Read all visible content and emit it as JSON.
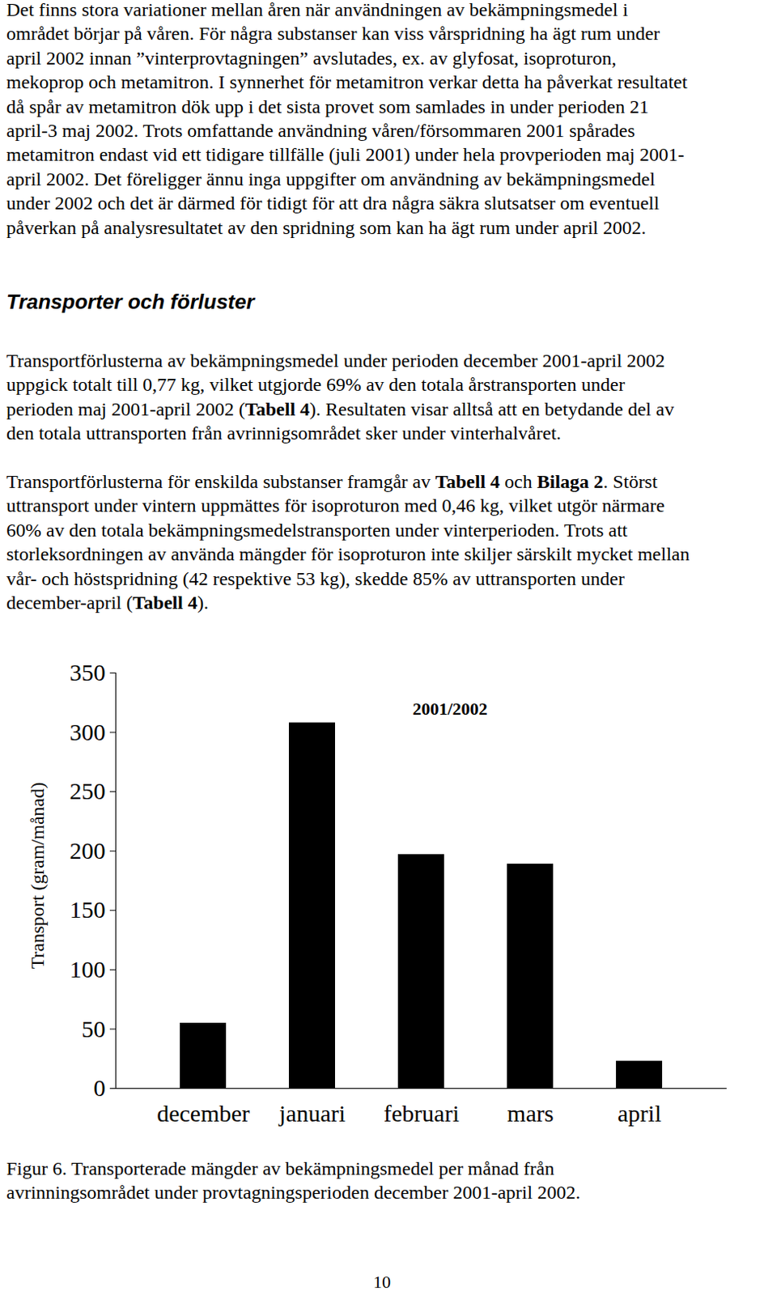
{
  "document": {
    "paragraphs": [
      [
        [
          "Det finns stora variationer mellan åren när användningen av bekämpningsmedel i"
        ],
        [
          "området börjar på våren. För några substanser kan viss vårspridning ha ägt rum under"
        ],
        [
          "april 2002 innan ”vinterprovtagningen” avslutades, ex. av glyfosat, isoproturon,"
        ],
        [
          "mekoprop och  metamitron. I synnerhet för metamitron verkar detta ha påverkat resultatet"
        ],
        [
          "då spår av metamitron dök upp i det sista provet som samlades in under perioden 21"
        ],
        [
          "april-3 maj 2002. Trots omfattande användning våren/försommaren 2001 spårades"
        ],
        [
          "metamitron endast vid ett tidigare tillfälle (juli 2001) under hela provperioden maj 2001-"
        ],
        [
          "april 2002. Det föreligger ännu inga uppgifter om användning av bekämpningsmedel"
        ],
        [
          "under 2002 och det är därmed för tidigt för att dra några säkra slutsatser om eventuell"
        ],
        [
          "påverkan på analysresultatet av den spridning som kan ha ägt rum under april 2002."
        ]
      ]
    ],
    "heading": "Transporter och förluster",
    "section_paragraphs": [
      [
        [
          "Transportförlusterna av bekämpningsmedel under perioden december 2001-april 2002"
        ],
        [
          "uppgick totalt till 0,77 kg, vilket utgjorde 69% av den totala årstransporten under"
        ],
        [
          "perioden maj 2001-april 2002 (",
          {
            "bold": "Tabell 4"
          },
          "). Resultaten visar alltså att en betydande del av"
        ],
        [
          "den totala uttransporten från avrinnigsområdet sker under vinterhalvåret."
        ]
      ],
      [
        [
          "Transportförlusterna för enskilda substanser framgår av ",
          {
            "bold": "Tabell 4"
          },
          " och ",
          {
            "bold": "Bilaga 2"
          },
          ". Störst"
        ],
        [
          "uttransport under vintern uppmättes för isoproturon med 0,46 kg, vilket utgör närmare"
        ],
        [
          "60% av den totala bekämpningsmedelstransporten under vinterperioden. Trots att"
        ],
        [
          "storleksordningen av använda mängder för isoproturon inte skiljer särskilt mycket mellan"
        ],
        [
          "vår- och höstspridning (42 respektive 53 kg), skedde 85% av uttransporten under"
        ],
        [
          "december-april (",
          {
            "bold": "Tabell 4"
          },
          ")."
        ]
      ]
    ],
    "caption": [
      "Figur 6. Transporterade mängder av bekämpningsmedel per månad från",
      "avrinningsområdet under provtagningsperioden december 2001-april 2002."
    ],
    "page_number": "10"
  },
  "chart_data": {
    "type": "bar",
    "title": "2001/2002",
    "ylabel": "Transport (gram/månad)",
    "categories": [
      "december",
      "januari",
      "februari",
      "mars",
      "april"
    ],
    "values": [
      55,
      308,
      197,
      189,
      23
    ],
    "color": "#000000",
    "ylim": [
      0,
      350
    ],
    "yticks": [
      0,
      50,
      100,
      150,
      200,
      250,
      300,
      350
    ],
    "grid": false
  }
}
